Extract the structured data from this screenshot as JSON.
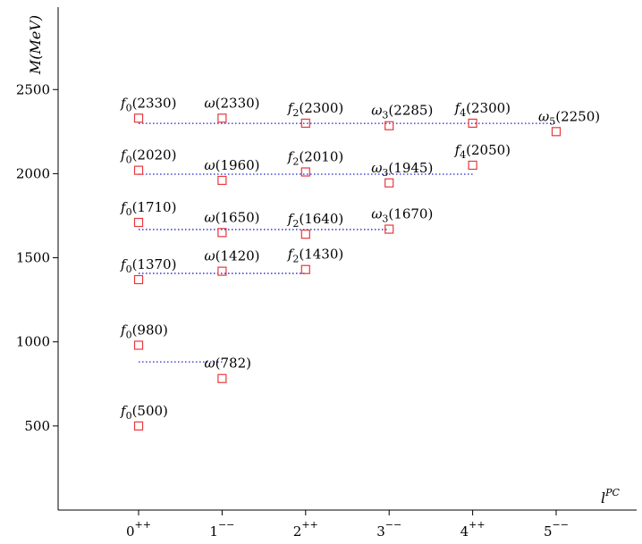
{
  "chart_data": {
    "type": "scatter",
    "title": "",
    "xlabel": "l",
    "xlabel_sup": "PC",
    "ylabel": "M(MeV)",
    "ylim": [
      0,
      2750
    ],
    "xlim": [
      -1,
      6
    ],
    "y_ticks": [
      500,
      1000,
      1500,
      2000,
      2500
    ],
    "x_ticks": [
      {
        "x": 0,
        "label": "0",
        "sup": "++"
      },
      {
        "x": 1,
        "label": "1",
        "sup": "−−"
      },
      {
        "x": 2,
        "label": "2",
        "sup": "++"
      },
      {
        "x": 3,
        "label": "3",
        "sup": "−−"
      },
      {
        "x": 4,
        "label": "4",
        "sup": "++"
      },
      {
        "x": 5,
        "label": "5",
        "sup": "−−"
      }
    ],
    "marker_color": "#e8383c",
    "line_color": "#2222cc",
    "points": [
      {
        "x": 0,
        "y": 500,
        "sym": "f",
        "sub": "0",
        "mass": "(500)"
      },
      {
        "x": 0,
        "y": 980,
        "sym": "f",
        "sub": "0",
        "mass": "(980)"
      },
      {
        "x": 1,
        "y": 782,
        "sym": "ω",
        "sub": "",
        "mass": "(782)"
      },
      {
        "x": 0,
        "y": 1370,
        "sym": "f",
        "sub": "0",
        "mass": "(1370)"
      },
      {
        "x": 1,
        "y": 1420,
        "sym": "ω",
        "sub": "",
        "mass": "(1420)"
      },
      {
        "x": 2,
        "y": 1430,
        "sym": "f",
        "sub": "2",
        "mass": "(1430)"
      },
      {
        "x": 0,
        "y": 1710,
        "sym": "f",
        "sub": "0",
        "mass": "(1710)"
      },
      {
        "x": 1,
        "y": 1650,
        "sym": "ω",
        "sub": "",
        "mass": "(1650)"
      },
      {
        "x": 2,
        "y": 1640,
        "sym": "f",
        "sub": "2",
        "mass": "(1640)"
      },
      {
        "x": 3,
        "y": 1670,
        "sym": "ω",
        "sub": "3",
        "mass": "(1670)"
      },
      {
        "x": 0,
        "y": 2020,
        "sym": "f",
        "sub": "0",
        "mass": "(2020)"
      },
      {
        "x": 1,
        "y": 1960,
        "sym": "ω",
        "sub": "",
        "mass": "(1960)"
      },
      {
        "x": 2,
        "y": 2010,
        "sym": "f",
        "sub": "2",
        "mass": "(2010)"
      },
      {
        "x": 3,
        "y": 1945,
        "sym": "ω",
        "sub": "3",
        "mass": "(1945)"
      },
      {
        "x": 4,
        "y": 2050,
        "sym": "f",
        "sub": "4",
        "mass": "(2050)"
      },
      {
        "x": 0,
        "y": 2330,
        "sym": "f",
        "sub": "0",
        "mass": "(2330)"
      },
      {
        "x": 1,
        "y": 2330,
        "sym": "ω",
        "sub": "",
        "mass": "(2330)"
      },
      {
        "x": 2,
        "y": 2300,
        "sym": "f",
        "sub": "2",
        "mass": "(2300)"
      },
      {
        "x": 3,
        "y": 2285,
        "sym": "ω",
        "sub": "3",
        "mass": "(2285)"
      },
      {
        "x": 4,
        "y": 2300,
        "sym": "f",
        "sub": "4",
        "mass": "(2300)"
      },
      {
        "x": 5,
        "y": 2250,
        "sym": "ω",
        "sub": "5",
        "mass": "(2250)"
      }
    ],
    "average_lines": [
      {
        "x_from": 0,
        "x_to": 1,
        "y": 881
      },
      {
        "x_from": 0,
        "x_to": 2,
        "y": 1407
      },
      {
        "x_from": 0,
        "x_to": 3,
        "y": 1668
      },
      {
        "x_from": 0,
        "x_to": 4,
        "y": 1997
      },
      {
        "x_from": 0,
        "x_to": 5,
        "y": 2299
      }
    ]
  }
}
